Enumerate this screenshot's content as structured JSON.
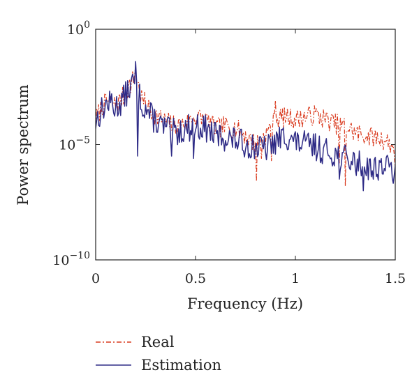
{
  "chart_data": {
    "type": "line",
    "title": "",
    "xlabel": "Frequency (Hz)",
    "ylabel": "Power spectrum",
    "xlim": [
      0,
      1.5
    ],
    "ylim_log10": [
      -10,
      0
    ],
    "yscale": "log",
    "grid": false,
    "legend_position": "bottom-left-outside",
    "x_ticks": [
      {
        "value": 0,
        "label": "0"
      },
      {
        "value": 0.5,
        "label": "0.5"
      },
      {
        "value": 1,
        "label": "1"
      },
      {
        "value": 1.5,
        "label": "1.5"
      }
    ],
    "y_ticks": [
      {
        "exp": 0,
        "base": "10",
        "sup": "0"
      },
      {
        "exp": -5,
        "base": "10",
        "sup": "−5"
      },
      {
        "exp": -10,
        "base": "10",
        "sup": "−10"
      }
    ],
    "x_step": 0.005,
    "series": [
      {
        "name": "Real",
        "color": "#d93a1e",
        "dash": "dashdot",
        "anchors": [
          [
            0,
            -3.9
          ],
          [
            0.03,
            -3.4
          ],
          [
            0.06,
            -3.1
          ],
          [
            0.1,
            -3.3
          ],
          [
            0.14,
            -2.9
          ],
          [
            0.18,
            -2.3
          ],
          [
            0.2,
            -2.0
          ],
          [
            0.23,
            -3.0
          ],
          [
            0.28,
            -3.6
          ],
          [
            0.33,
            -3.9
          ],
          [
            0.4,
            -4.2
          ],
          [
            0.45,
            -4.1
          ],
          [
            0.5,
            -3.8
          ],
          [
            0.55,
            -3.9
          ],
          [
            0.6,
            -4.3
          ],
          [
            0.65,
            -4.2
          ],
          [
            0.7,
            -4.3
          ],
          [
            0.75,
            -4.6
          ],
          [
            0.8,
            -5.0
          ],
          [
            0.85,
            -4.6
          ],
          [
            0.9,
            -3.9
          ],
          [
            0.95,
            -3.8
          ],
          [
            1.0,
            -3.9
          ],
          [
            1.05,
            -3.8
          ],
          [
            1.1,
            -3.7
          ],
          [
            1.15,
            -3.9
          ],
          [
            1.2,
            -4.1
          ],
          [
            1.25,
            -4.2
          ],
          [
            1.3,
            -4.5
          ],
          [
            1.35,
            -4.6
          ],
          [
            1.4,
            -4.7
          ],
          [
            1.45,
            -4.8
          ],
          [
            1.5,
            -5.2
          ]
        ],
        "jitter": 0.45,
        "dips": [
          [
            0.805,
            -6.6
          ],
          [
            0.83,
            -5.6
          ],
          [
            0.88,
            -5.7
          ],
          [
            1.25,
            -6.8
          ],
          [
            1.22,
            -5.8
          ],
          [
            1.5,
            -6.1
          ]
        ],
        "peaks": [
          [
            0.9,
            -3.1
          ],
          [
            0.2,
            -1.6
          ]
        ],
        "seed": 7
      },
      {
        "name": "Estimation",
        "color": "#2e2b86",
        "dash": "solid",
        "anchors": [
          [
            0,
            -4.0
          ],
          [
            0.03,
            -3.5
          ],
          [
            0.06,
            -3.2
          ],
          [
            0.1,
            -3.4
          ],
          [
            0.14,
            -3.0
          ],
          [
            0.18,
            -2.4
          ],
          [
            0.2,
            -2.3
          ],
          [
            0.23,
            -3.2
          ],
          [
            0.28,
            -3.8
          ],
          [
            0.33,
            -4.2
          ],
          [
            0.4,
            -4.5
          ],
          [
            0.45,
            -4.3
          ],
          [
            0.5,
            -4.2
          ],
          [
            0.55,
            -4.3
          ],
          [
            0.6,
            -4.6
          ],
          [
            0.65,
            -4.7
          ],
          [
            0.7,
            -4.8
          ],
          [
            0.75,
            -5.0
          ],
          [
            0.8,
            -5.1
          ],
          [
            0.85,
            -5.2
          ],
          [
            0.9,
            -4.9
          ],
          [
            0.95,
            -4.6
          ],
          [
            1.0,
            -4.9
          ],
          [
            1.05,
            -5.0
          ],
          [
            1.1,
            -5.1
          ],
          [
            1.15,
            -5.3
          ],
          [
            1.2,
            -5.4
          ],
          [
            1.25,
            -5.6
          ],
          [
            1.3,
            -5.8
          ],
          [
            1.35,
            -5.9
          ],
          [
            1.4,
            -6.0
          ],
          [
            1.45,
            -5.9
          ],
          [
            1.5,
            -6.2
          ]
        ],
        "jitter": 0.6,
        "dips": [
          [
            0.21,
            -5.5
          ],
          [
            0.38,
            -5.5
          ],
          [
            0.49,
            -5.6
          ],
          [
            1.22,
            -6.5
          ],
          [
            1.34,
            -7.0
          ],
          [
            1.39,
            -6.5
          ]
        ],
        "peaks": [
          [
            0.2,
            -1.4
          ],
          [
            0.08,
            -2.8
          ]
        ],
        "seed": 13
      }
    ],
    "legend": [
      {
        "label": "Real",
        "color": "#d93a1e",
        "dash": "dashdot"
      },
      {
        "label": "Estimation",
        "color": "#2e2b86",
        "dash": "solid"
      }
    ]
  }
}
